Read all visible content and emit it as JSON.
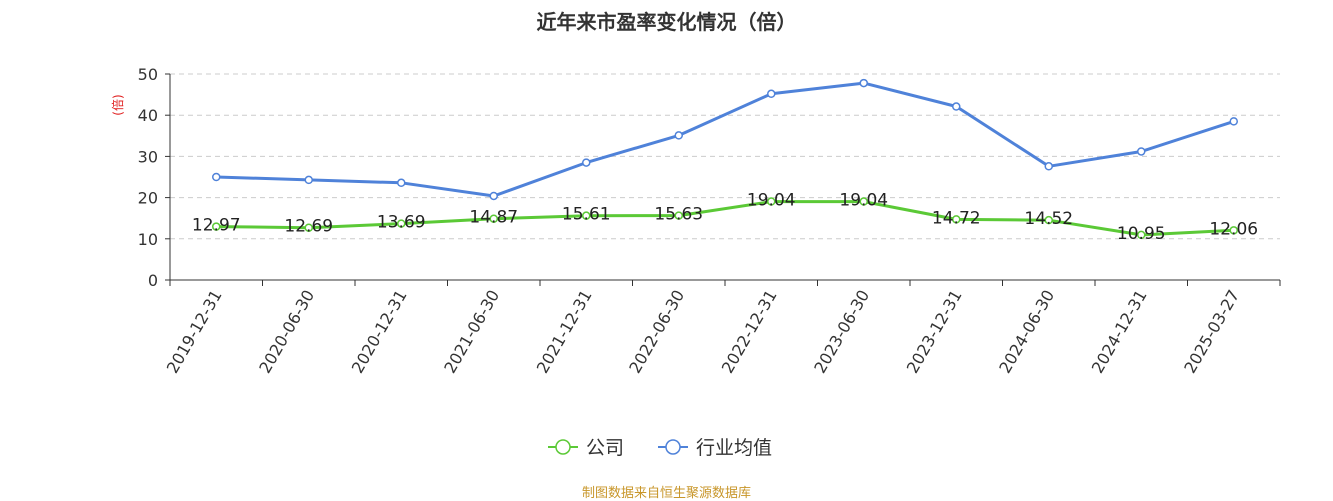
{
  "chart_data": {
    "type": "line",
    "title": "近年来市盈率变化情况（倍）",
    "ylabel": "(倍)",
    "ylim": [
      0,
      50
    ],
    "yticks": [
      0,
      10,
      20,
      30,
      40,
      50
    ],
    "grid": true,
    "legend_position": "bottom-center",
    "categories": [
      "2019-12-31",
      "2020-06-30",
      "2020-12-31",
      "2021-06-30",
      "2021-12-31",
      "2022-06-30",
      "2022-12-31",
      "2023-06-30",
      "2023-12-31",
      "2024-06-30",
      "2024-12-31",
      "2025-03-27"
    ],
    "series": [
      {
        "name": "公司",
        "color": "#5bc936",
        "values": [
          12.97,
          12.69,
          13.69,
          14.87,
          15.61,
          15.63,
          19.04,
          19.04,
          14.72,
          14.52,
          10.95,
          12.06
        ],
        "labels": [
          "12.97",
          "12.69",
          "13.69",
          "14.87",
          "15.61",
          "15.63",
          "19.04",
          "19.04",
          "14.72",
          "14.52",
          "10.95",
          "12.06"
        ]
      },
      {
        "name": "行业均值",
        "color": "#4f82d9",
        "values": [
          25.0,
          24.3,
          23.6,
          20.4,
          28.5,
          35.1,
          45.2,
          47.8,
          42.1,
          27.6,
          31.2,
          38.5
        ]
      }
    ]
  },
  "source_note": "制图数据来自恒生聚源数据库"
}
